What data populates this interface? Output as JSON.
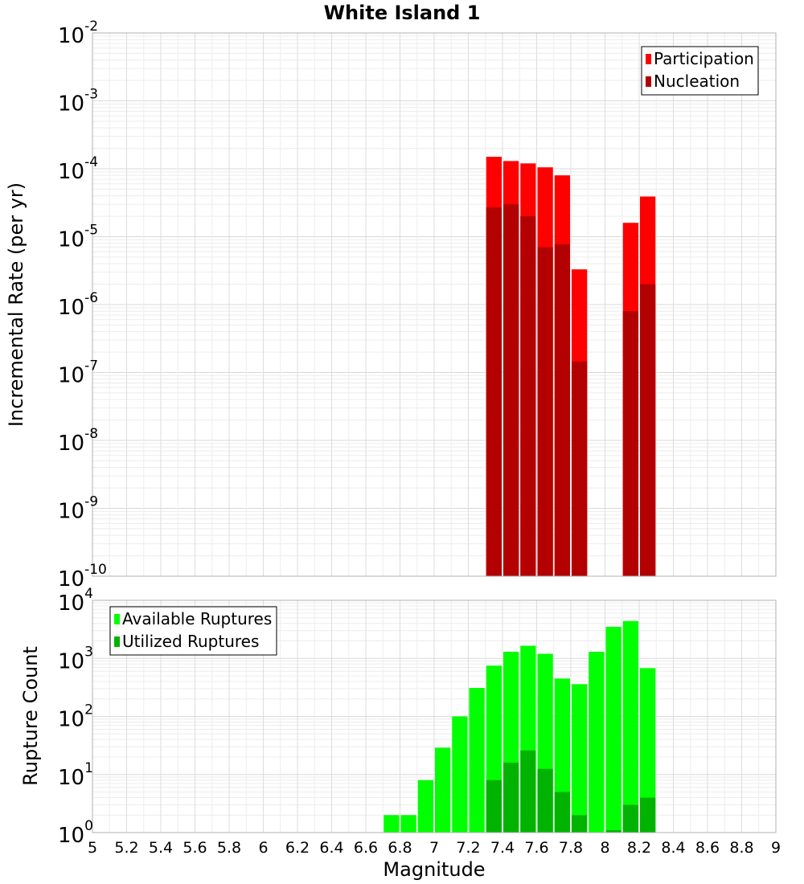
{
  "chart_data": [
    {
      "type": "bar",
      "title": "White Island 1",
      "xlabel": "",
      "ylabel": "Incremental Rate (per yr)",
      "yscale": "log",
      "ylim_exponents": [
        -10,
        -2
      ],
      "xlim": [
        5,
        9
      ],
      "legend": {
        "placement": "top-right"
      },
      "grid": true,
      "bin_width": 0.1,
      "series": [
        {
          "name": "Participation",
          "color": "#ff0000",
          "points": [
            {
              "x": 7.35,
              "y": 0.00015
            },
            {
              "x": 7.45,
              "y": 0.00013
            },
            {
              "x": 7.55,
              "y": 0.00012
            },
            {
              "x": 7.65,
              "y": 0.000105
            },
            {
              "x": 7.75,
              "y": 8e-05
            },
            {
              "x": 7.85,
              "y": 3.3e-06
            },
            {
              "x": 8.15,
              "y": 1.6e-05
            },
            {
              "x": 8.25,
              "y": 3.9e-05
            }
          ]
        },
        {
          "name": "Nucleation",
          "color": "#b30000",
          "points": [
            {
              "x": 7.35,
              "y": 2.7e-05
            },
            {
              "x": 7.45,
              "y": 3e-05
            },
            {
              "x": 7.55,
              "y": 2e-05
            },
            {
              "x": 7.65,
              "y": 7e-06
            },
            {
              "x": 7.75,
              "y": 7.7e-06
            },
            {
              "x": 7.85,
              "y": 1.45e-07
            },
            {
              "x": 8.15,
              "y": 8e-07
            },
            {
              "x": 8.25,
              "y": 2e-06
            }
          ]
        }
      ]
    },
    {
      "type": "bar",
      "title": "",
      "xlabel": "Magnitude",
      "ylabel": "Rupture Count",
      "yscale": "log",
      "ylim_exponents": [
        0,
        4
      ],
      "xlim": [
        5,
        9
      ],
      "legend": {
        "placement": "top-left"
      },
      "grid": true,
      "bin_width": 0.1,
      "x_ticks": [
        "5",
        "5.2",
        "5.4",
        "5.6",
        "5.8",
        "6",
        "6.2",
        "6.4",
        "6.6",
        "6.8",
        "7",
        "7.2",
        "7.4",
        "7.6",
        "7.8",
        "8",
        "8.2",
        "8.4",
        "8.6",
        "8.8",
        "9"
      ],
      "series": [
        {
          "name": "Available Ruptures",
          "color": "#00ff00",
          "points": [
            {
              "x": 6.75,
              "y": 2
            },
            {
              "x": 6.85,
              "y": 2
            },
            {
              "x": 6.95,
              "y": 8
            },
            {
              "x": 7.05,
              "y": 29
            },
            {
              "x": 7.15,
              "y": 100
            },
            {
              "x": 7.25,
              "y": 310
            },
            {
              "x": 7.35,
              "y": 750
            },
            {
              "x": 7.45,
              "y": 1300
            },
            {
              "x": 7.55,
              "y": 1650
            },
            {
              "x": 7.65,
              "y": 1200
            },
            {
              "x": 7.75,
              "y": 450
            },
            {
              "x": 7.85,
              "y": 360
            },
            {
              "x": 7.95,
              "y": 1300
            },
            {
              "x": 8.05,
              "y": 3500
            },
            {
              "x": 8.15,
              "y": 4400
            },
            {
              "x": 8.25,
              "y": 680
            }
          ]
        },
        {
          "name": "Utilized Ruptures",
          "color": "#00b300",
          "points": [
            {
              "x": 7.35,
              "y": 8
            },
            {
              "x": 7.45,
              "y": 16
            },
            {
              "x": 7.55,
              "y": 26
            },
            {
              "x": 7.65,
              "y": 12.5
            },
            {
              "x": 7.75,
              "y": 5
            },
            {
              "x": 7.85,
              "y": 2
            },
            {
              "x": 8.05,
              "y": 1.1
            },
            {
              "x": 8.15,
              "y": 3
            },
            {
              "x": 8.25,
              "y": 4
            }
          ]
        }
      ]
    }
  ]
}
